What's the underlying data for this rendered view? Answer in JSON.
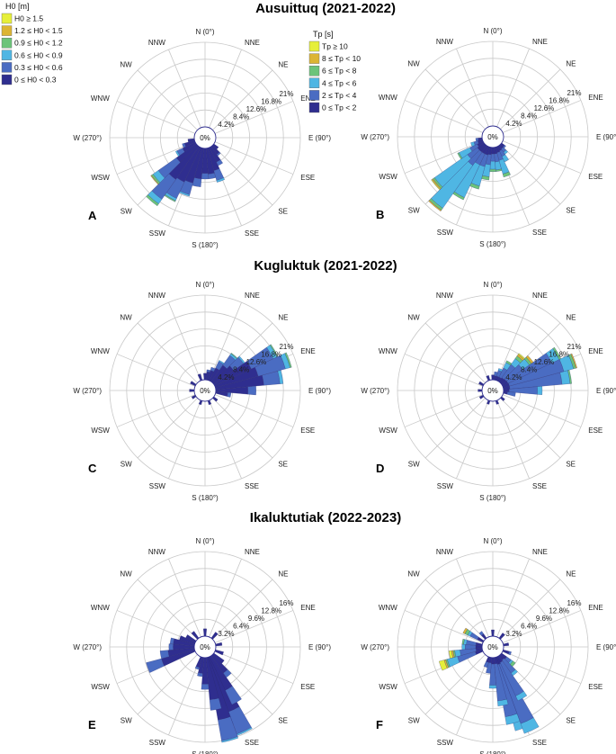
{
  "figure": {
    "section_titles": [
      "Ausuittuq (2021-2022)",
      "Kugluktuk (2021-2022)",
      "Ikaluktutiak (2022-2023)"
    ],
    "legends": {
      "height": {
        "title": "H0 [m]",
        "entries": [
          {
            "label": "H0 ≥ 1.5",
            "color": "#e6ef3a"
          },
          {
            "label": "1.2 ≤ H0 < 1.5",
            "color": "#dcb534"
          },
          {
            "label": "0.9 ≤ H0 < 1.2",
            "color": "#6cc47a"
          },
          {
            "label": "0.6 ≤ H0 < 0.9",
            "color": "#4fb6e3"
          },
          {
            "label": "0.3 ≤ H0 < 0.6",
            "color": "#4a6cc2"
          },
          {
            "label": "0 ≤ H0 < 0.3",
            "color": "#2f2e8f"
          }
        ]
      },
      "period": {
        "title": "Tp [s]",
        "entries": [
          {
            "label": "Tp ≥ 10",
            "color": "#e6ef3a"
          },
          {
            "label": "8 ≤ Tp < 10",
            "color": "#dcb534"
          },
          {
            "label": "6 ≤ Tp < 8",
            "color": "#6cc47a"
          },
          {
            "label": "4 ≤ Tp < 6",
            "color": "#4fb6e3"
          },
          {
            "label": "2 ≤ Tp < 4",
            "color": "#4a6cc2"
          },
          {
            "label": "0 ≤ Tp < 2",
            "color": "#2f2e8f"
          }
        ]
      }
    },
    "direction_labels": [
      "N (0°)",
      "NNE",
      "NE",
      "ENE",
      "E (90°)",
      "ESE",
      "SE",
      "SSE",
      "S (180°)",
      "SSW",
      "SW",
      "WSW",
      "W (270°)",
      "WNW",
      "NW",
      "NNW"
    ],
    "center_label": "0%"
  },
  "chart_data": [
    {
      "type": "polar-bar",
      "panel": "A",
      "site": "Ausuittuq (2021-2022)",
      "variable": "H0 [m]",
      "rings": [
        "4.2%",
        "8.4%",
        "12.6%",
        "16.8%",
        "21%"
      ],
      "rmax": 21,
      "bins": [
        {
          "dir": 180,
          "stack": [
            6.2,
            1.4
          ]
        },
        {
          "dir": 190,
          "stack": [
            7.6,
            2.0
          ]
        },
        {
          "dir": 200,
          "stack": [
            9.0,
            3.0,
            0.4
          ]
        },
        {
          "dir": 210,
          "stack": [
            9.5,
            4.5,
            0.6,
            0.3
          ]
        },
        {
          "dir": 220,
          "stack": [
            10.0,
            6.0,
            1.4,
            0.6
          ]
        },
        {
          "dir": 230,
          "stack": [
            6.0,
            5.5,
            1.6,
            0.5,
            0.2
          ]
        },
        {
          "dir": 240,
          "stack": [
            3.5,
            1.5,
            0.4
          ]
        },
        {
          "dir": 250,
          "stack": [
            2.6,
            0.6
          ]
        },
        {
          "dir": 170,
          "stack": [
            6.4,
            1.2
          ]
        },
        {
          "dir": 160,
          "stack": [
            5.8,
            2.5,
            0.5
          ]
        },
        {
          "dir": 150,
          "stack": [
            4.0,
            1.0
          ]
        },
        {
          "dir": 140,
          "stack": [
            2.4,
            0.4
          ]
        },
        {
          "dir": 260,
          "stack": [
            1.6
          ]
        },
        {
          "dir": 130,
          "stack": [
            1.4
          ]
        }
      ]
    },
    {
      "type": "polar-bar",
      "panel": "B",
      "site": "Ausuittuq (2021-2022)",
      "variable": "Tp [s]",
      "rings": [
        "4.2%",
        "8.4%",
        "12.6%",
        "16.8%",
        "21%"
      ],
      "rmax": 21,
      "bins": [
        {
          "dir": 180,
          "stack": [
            1.6,
            1.8,
            2.0,
            0.6
          ]
        },
        {
          "dir": 190,
          "stack": [
            1.8,
            2.5,
            3.0,
            0.8
          ]
        },
        {
          "dir": 200,
          "stack": [
            2.0,
            3.0,
            5.0,
            0.8
          ]
        },
        {
          "dir": 210,
          "stack": [
            2.0,
            3.0,
            9.0,
            0.6
          ]
        },
        {
          "dir": 220,
          "stack": [
            2.0,
            4.0,
            13.0,
            0.6,
            0.3
          ]
        },
        {
          "dir": 230,
          "stack": [
            2.0,
            3.0,
            10.0,
            0.5,
            0.3,
            0.2
          ]
        },
        {
          "dir": 240,
          "stack": [
            1.6,
            2.0,
            3.0,
            0.4
          ]
        },
        {
          "dir": 250,
          "stack": [
            1.2,
            1.0,
            0.8
          ]
        },
        {
          "dir": 170,
          "stack": [
            1.6,
            2.0,
            2.0,
            0.4
          ]
        },
        {
          "dir": 160,
          "stack": [
            1.4,
            2.0,
            3.5,
            0.8
          ]
        },
        {
          "dir": 150,
          "stack": [
            1.2,
            1.5,
            1.5
          ]
        },
        {
          "dir": 140,
          "stack": [
            1.0,
            1.0,
            0.6
          ]
        },
        {
          "dir": 260,
          "stack": [
            1.0,
            0.6
          ]
        },
        {
          "dir": 130,
          "stack": [
            0.9,
            0.4
          ]
        }
      ]
    },
    {
      "type": "polar-bar",
      "panel": "C",
      "site": "Kugluktuk (2021-2022)",
      "variable": "H0 [m]",
      "rings": [
        "4.2%",
        "8.4%",
        "12.6%",
        "16.8%",
        "21%"
      ],
      "rmax": 21,
      "bins": [
        {
          "dir": 80,
          "stack": [
            12.0,
            4.0,
            0.8
          ]
        },
        {
          "dir": 70,
          "stack": [
            11.0,
            7.0,
            1.2,
            0.4
          ]
        },
        {
          "dir": 60,
          "stack": [
            10.0,
            6.0,
            1.0,
            0.3
          ]
        },
        {
          "dir": 50,
          "stack": [
            6.0,
            3.0,
            0.4
          ]
        },
        {
          "dir": 40,
          "stack": [
            5.0,
            3.0,
            0.5,
            0.2
          ]
        },
        {
          "dir": 30,
          "stack": [
            3.5,
            1.8,
            0.3
          ]
        },
        {
          "dir": 90,
          "stack": [
            8.0,
            2.0
          ]
        },
        {
          "dir": 100,
          "stack": [
            3.0,
            0.8
          ]
        },
        {
          "dir": 20,
          "stack": [
            2.5,
            0.8
          ]
        },
        {
          "dir": 10,
          "stack": [
            2.0,
            0.5
          ]
        },
        {
          "dir": 0,
          "stack": [
            1.6
          ]
        },
        {
          "dir": 340,
          "stack": [
            1.6
          ]
        },
        {
          "dir": 300,
          "stack": [
            1.4
          ]
        },
        {
          "dir": 270,
          "stack": [
            1.2
          ]
        },
        {
          "dir": 240,
          "stack": [
            1.0
          ]
        },
        {
          "dir": 200,
          "stack": [
            1.0
          ]
        },
        {
          "dir": 160,
          "stack": [
            1.0
          ]
        },
        {
          "dir": 130,
          "stack": [
            1.2
          ]
        }
      ]
    },
    {
      "type": "polar-bar",
      "panel": "D",
      "site": "Kugluktuk (2021-2022)",
      "variable": "Tp [s]",
      "rings": [
        "4.2%",
        "8.4%",
        "12.6%",
        "16.8%",
        "21%"
      ],
      "rmax": 21,
      "bins": [
        {
          "dir": 80,
          "stack": [
            1.6,
            13.0,
            2.0,
            0.4
          ]
        },
        {
          "dir": 70,
          "stack": [
            1.6,
            14.0,
            2.5,
            0.6,
            0.3
          ]
        },
        {
          "dir": 60,
          "stack": [
            1.5,
            12.0,
            2.0,
            0.5
          ]
        },
        {
          "dir": 50,
          "stack": [
            1.4,
            5.0,
            2.0,
            0.6,
            0.6
          ]
        },
        {
          "dir": 40,
          "stack": [
            1.2,
            4.0,
            1.8,
            0.8,
            0.5,
            0.3
          ]
        },
        {
          "dir": 30,
          "stack": [
            1.0,
            2.5,
            1.5,
            0.5
          ]
        },
        {
          "dir": 90,
          "stack": [
            1.4,
            7.0,
            1.2
          ]
        },
        {
          "dir": 100,
          "stack": [
            1.0,
            2.0
          ]
        },
        {
          "dir": 20,
          "stack": [
            1.0,
            1.5,
            0.5
          ]
        },
        {
          "dir": 10,
          "stack": [
            1.0,
            1.0
          ]
        },
        {
          "dir": 0,
          "stack": [
            1.2
          ]
        },
        {
          "dir": 340,
          "stack": [
            1.2
          ]
        },
        {
          "dir": 300,
          "stack": [
            1.2
          ]
        },
        {
          "dir": 270,
          "stack": [
            1.0
          ]
        },
        {
          "dir": 240,
          "stack": [
            1.0
          ]
        },
        {
          "dir": 200,
          "stack": [
            0.9
          ]
        },
        {
          "dir": 160,
          "stack": [
            0.9
          ]
        },
        {
          "dir": 130,
          "stack": [
            1.0
          ]
        }
      ]
    },
    {
      "type": "polar-bar",
      "panel": "E",
      "site": "Ikaluktutiak (2022-2023)",
      "variable": "H0 [m]",
      "rings": [
        "3.2%",
        "6.4%",
        "9.6%",
        "12.8%",
        "16%"
      ],
      "rmax": 16,
      "bins": [
        {
          "dir": 160,
          "stack": [
            10.0,
            3.5
          ]
        },
        {
          "dir": 155,
          "stack": [
            11.0,
            4.5,
            0.3
          ]
        },
        {
          "dir": 165,
          "stack": [
            12.0,
            4.0,
            0.3
          ]
        },
        {
          "dir": 150,
          "stack": [
            7.0,
            3.0
          ]
        },
        {
          "dir": 170,
          "stack": [
            8.0,
            2.0
          ]
        },
        {
          "dir": 140,
          "stack": [
            4.0,
            1.0
          ]
        },
        {
          "dir": 180,
          "stack": [
            5.0,
            1.0
          ]
        },
        {
          "dir": 190,
          "stack": [
            3.0,
            0.6
          ]
        },
        {
          "dir": 200,
          "stack": [
            2.0,
            0.4
          ]
        },
        {
          "dir": 250,
          "stack": [
            6.5,
            3.0
          ]
        },
        {
          "dir": 260,
          "stack": [
            5.0,
            1.5
          ]
        },
        {
          "dir": 270,
          "stack": [
            4.0,
            0.8
          ]
        },
        {
          "dir": 280,
          "stack": [
            4.0,
            0.6
          ]
        },
        {
          "dir": 290,
          "stack": [
            3.0
          ]
        },
        {
          "dir": 300,
          "stack": [
            2.0
          ]
        },
        {
          "dir": 320,
          "stack": [
            1.6
          ]
        },
        {
          "dir": 0,
          "stack": [
            1.4
          ]
        },
        {
          "dir": 40,
          "stack": [
            1.4
          ]
        },
        {
          "dir": 80,
          "stack": [
            1.2
          ]
        },
        {
          "dir": 110,
          "stack": [
            1.6
          ]
        },
        {
          "dir": 130,
          "stack": [
            2.4
          ]
        }
      ]
    },
    {
      "type": "polar-bar",
      "panel": "F",
      "site": "Ikaluktutiak (2022-2023)",
      "variable": "Tp [s]",
      "rings": [
        "3.2%",
        "6.4%",
        "9.6%",
        "12.8%",
        "16%"
      ],
      "rmax": 16,
      "bins": [
        {
          "dir": 160,
          "stack": [
            1.4,
            11.0,
            2.0
          ]
        },
        {
          "dir": 155,
          "stack": [
            1.4,
            12.0,
            2.0
          ]
        },
        {
          "dir": 165,
          "stack": [
            1.4,
            10.0,
            1.5
          ]
        },
        {
          "dir": 150,
          "stack": [
            1.2,
            7.0,
            1.0
          ]
        },
        {
          "dir": 170,
          "stack": [
            1.2,
            7.0,
            1.0
          ]
        },
        {
          "dir": 140,
          "stack": [
            1.0,
            3.0,
            0.6
          ]
        },
        {
          "dir": 180,
          "stack": [
            1.2,
            4.0,
            0.6
          ]
        },
        {
          "dir": 190,
          "stack": [
            1.0,
            2.0
          ]
        },
        {
          "dir": 200,
          "stack": [
            1.0,
            1.0
          ]
        },
        {
          "dir": 250,
          "stack": [
            1.4,
            3.5,
            2.0,
            0.3,
            0.3,
            1.0
          ]
        },
        {
          "dir": 260,
          "stack": [
            1.2,
            3.0,
            1.0,
            0.3,
            0.3,
            0.5
          ]
        },
        {
          "dir": 270,
          "stack": [
            1.2,
            2.0,
            0.6
          ]
        },
        {
          "dir": 280,
          "stack": [
            1.2,
            1.8,
            0.5,
            0.3
          ]
        },
        {
          "dir": 300,
          "stack": [
            1.2,
            1.5,
            0.5,
            0.6,
            0.4
          ]
        },
        {
          "dir": 320,
          "stack": [
            1.0,
            0.6
          ]
        },
        {
          "dir": 0,
          "stack": [
            1.2
          ]
        },
        {
          "dir": 40,
          "stack": [
            1.2
          ]
        },
        {
          "dir": 80,
          "stack": [
            1.0
          ]
        },
        {
          "dir": 110,
          "stack": [
            1.2,
            0.4
          ]
        },
        {
          "dir": 130,
          "stack": [
            1.2,
            1.0,
            0.4,
            0.6
          ]
        }
      ]
    }
  ]
}
